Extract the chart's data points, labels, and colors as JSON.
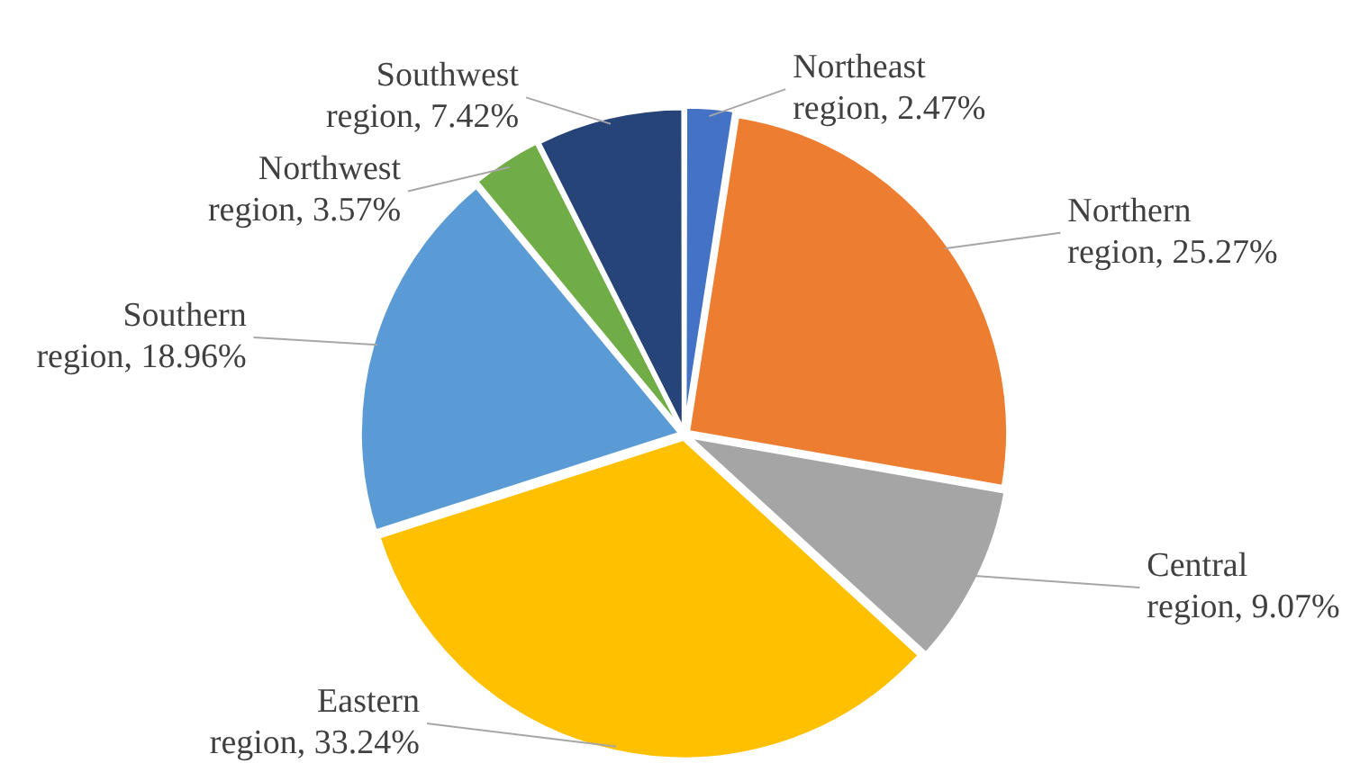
{
  "chart_data": {
    "type": "pie",
    "categories": [
      "Northeast region",
      "Northern region",
      "Central region",
      "Eastern region",
      "Southern region",
      "Northwest region",
      "Southwest region"
    ],
    "values": [
      2.47,
      25.27,
      9.07,
      33.24,
      18.96,
      3.57,
      7.42
    ],
    "value_labels": [
      "2.47%",
      "25.27%",
      "9.07%",
      "33.24%",
      "18.96%",
      "3.57%",
      "7.42%"
    ],
    "colors": [
      "#4472c4",
      "#ed7d31",
      "#a5a5a5",
      "#ffc000",
      "#5b9bd5",
      "#70ad47",
      "#264478"
    ],
    "legend": false
  }
}
